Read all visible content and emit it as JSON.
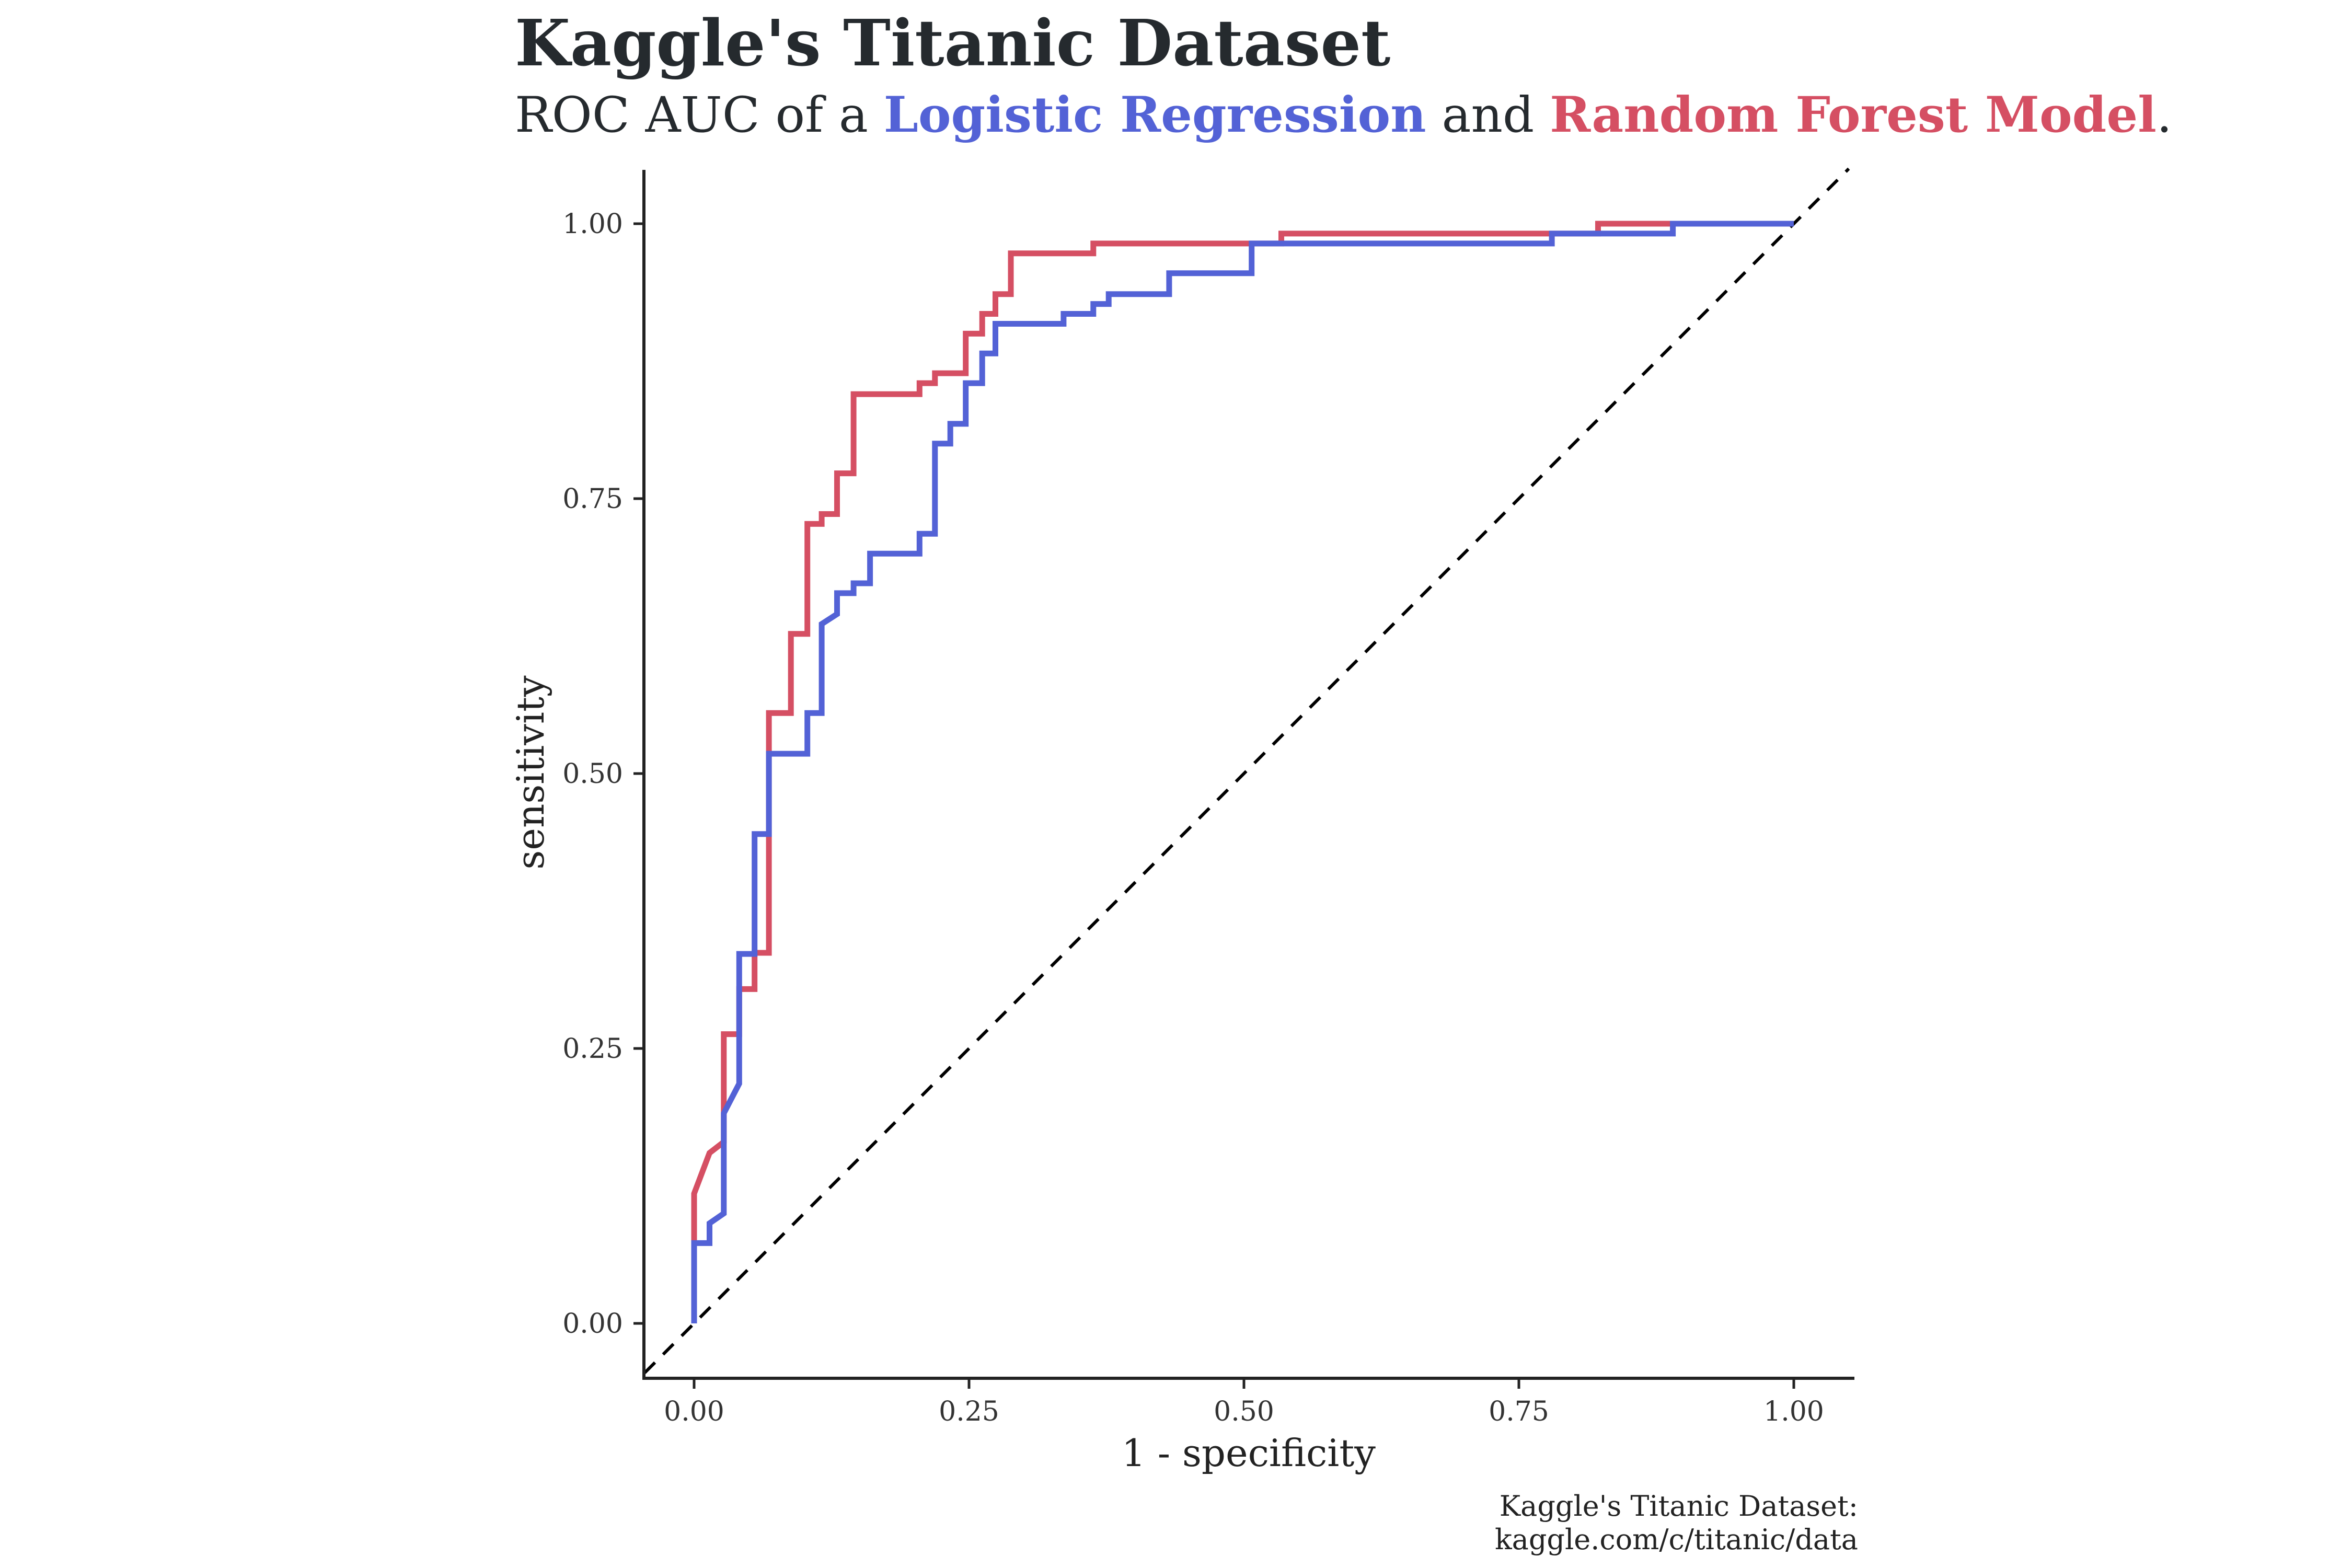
{
  "title": "Kaggle's Titanic Dataset",
  "subtitle": {
    "prefix": "ROC AUC of a",
    "lr": "Logistic Regression",
    "middle": "and",
    "rf": "Random Forest Model",
    "suffix": "."
  },
  "caption": {
    "line1": "Kaggle's Titanic Dataset:",
    "line2": "kaggle.com/c/titanic/data"
  },
  "colors": {
    "lr": "#5362d6",
    "rf": "#d54f63",
    "diagonal": "#000000"
  },
  "chart_data": {
    "type": "line",
    "xlabel": "1 - specificity",
    "ylabel": "sensitivity",
    "xlim": [
      0,
      1
    ],
    "ylim": [
      0,
      1
    ],
    "x_ticks": [
      "0.00",
      "0.25",
      "0.50",
      "0.75",
      "1.00"
    ],
    "y_ticks": [
      "0.00",
      "0.25",
      "0.50",
      "0.75",
      "1.00"
    ],
    "grid": false,
    "reference_line": {
      "type": "diagonal",
      "style": "dashed",
      "from": [
        0,
        0
      ],
      "to": [
        1,
        1
      ]
    },
    "series": [
      {
        "name": "Random Forest Model",
        "color": "#d54f63",
        "x": [
          0.0,
          0.0,
          0.014,
          0.027,
          0.027,
          0.041,
          0.041,
          0.055,
          0.055,
          0.068,
          0.068,
          0.088,
          0.088,
          0.103,
          0.103,
          0.116,
          0.116,
          0.13,
          0.13,
          0.145,
          0.145,
          0.16,
          0.16,
          0.205,
          0.205,
          0.219,
          0.219,
          0.247,
          0.247,
          0.262,
          0.262,
          0.274,
          0.274,
          0.288,
          0.288,
          0.363,
          0.363,
          0.534,
          0.534,
          0.822,
          0.822,
          0.89,
          0.89,
          1.0
        ],
        "y": [
          0.0,
          0.118,
          0.155,
          0.165,
          0.263,
          0.263,
          0.304,
          0.304,
          0.337,
          0.337,
          0.555,
          0.555,
          0.627,
          0.627,
          0.727,
          0.727,
          0.736,
          0.736,
          0.773,
          0.773,
          0.845,
          0.845,
          0.845,
          0.845,
          0.855,
          0.855,
          0.864,
          0.864,
          0.9,
          0.9,
          0.918,
          0.918,
          0.936,
          0.936,
          0.973,
          0.973,
          0.982,
          0.982,
          0.991,
          0.991,
          1.0,
          1.0,
          1.0,
          1.0
        ]
      },
      {
        "name": "Logistic Regression",
        "color": "#5362d6",
        "x": [
          0.0,
          0.0,
          0.014,
          0.014,
          0.027,
          0.027,
          0.041,
          0.041,
          0.055,
          0.055,
          0.068,
          0.068,
          0.103,
          0.103,
          0.116,
          0.116,
          0.13,
          0.13,
          0.145,
          0.145,
          0.16,
          0.16,
          0.205,
          0.205,
          0.219,
          0.219,
          0.233,
          0.233,
          0.247,
          0.247,
          0.262,
          0.262,
          0.274,
          0.274,
          0.336,
          0.336,
          0.363,
          0.363,
          0.377,
          0.377,
          0.432,
          0.432,
          0.507,
          0.507,
          0.78,
          0.78,
          0.89,
          0.89,
          1.0
        ],
        "y": [
          0.0,
          0.073,
          0.073,
          0.091,
          0.1,
          0.191,
          0.218,
          0.336,
          0.336,
          0.445,
          0.445,
          0.518,
          0.518,
          0.555,
          0.555,
          0.636,
          0.645,
          0.664,
          0.664,
          0.673,
          0.673,
          0.7,
          0.7,
          0.718,
          0.718,
          0.8,
          0.8,
          0.818,
          0.818,
          0.855,
          0.855,
          0.882,
          0.882,
          0.909,
          0.909,
          0.918,
          0.918,
          0.927,
          0.927,
          0.936,
          0.936,
          0.955,
          0.955,
          0.982,
          0.982,
          0.991,
          0.991,
          1.0,
          1.0
        ]
      }
    ]
  }
}
